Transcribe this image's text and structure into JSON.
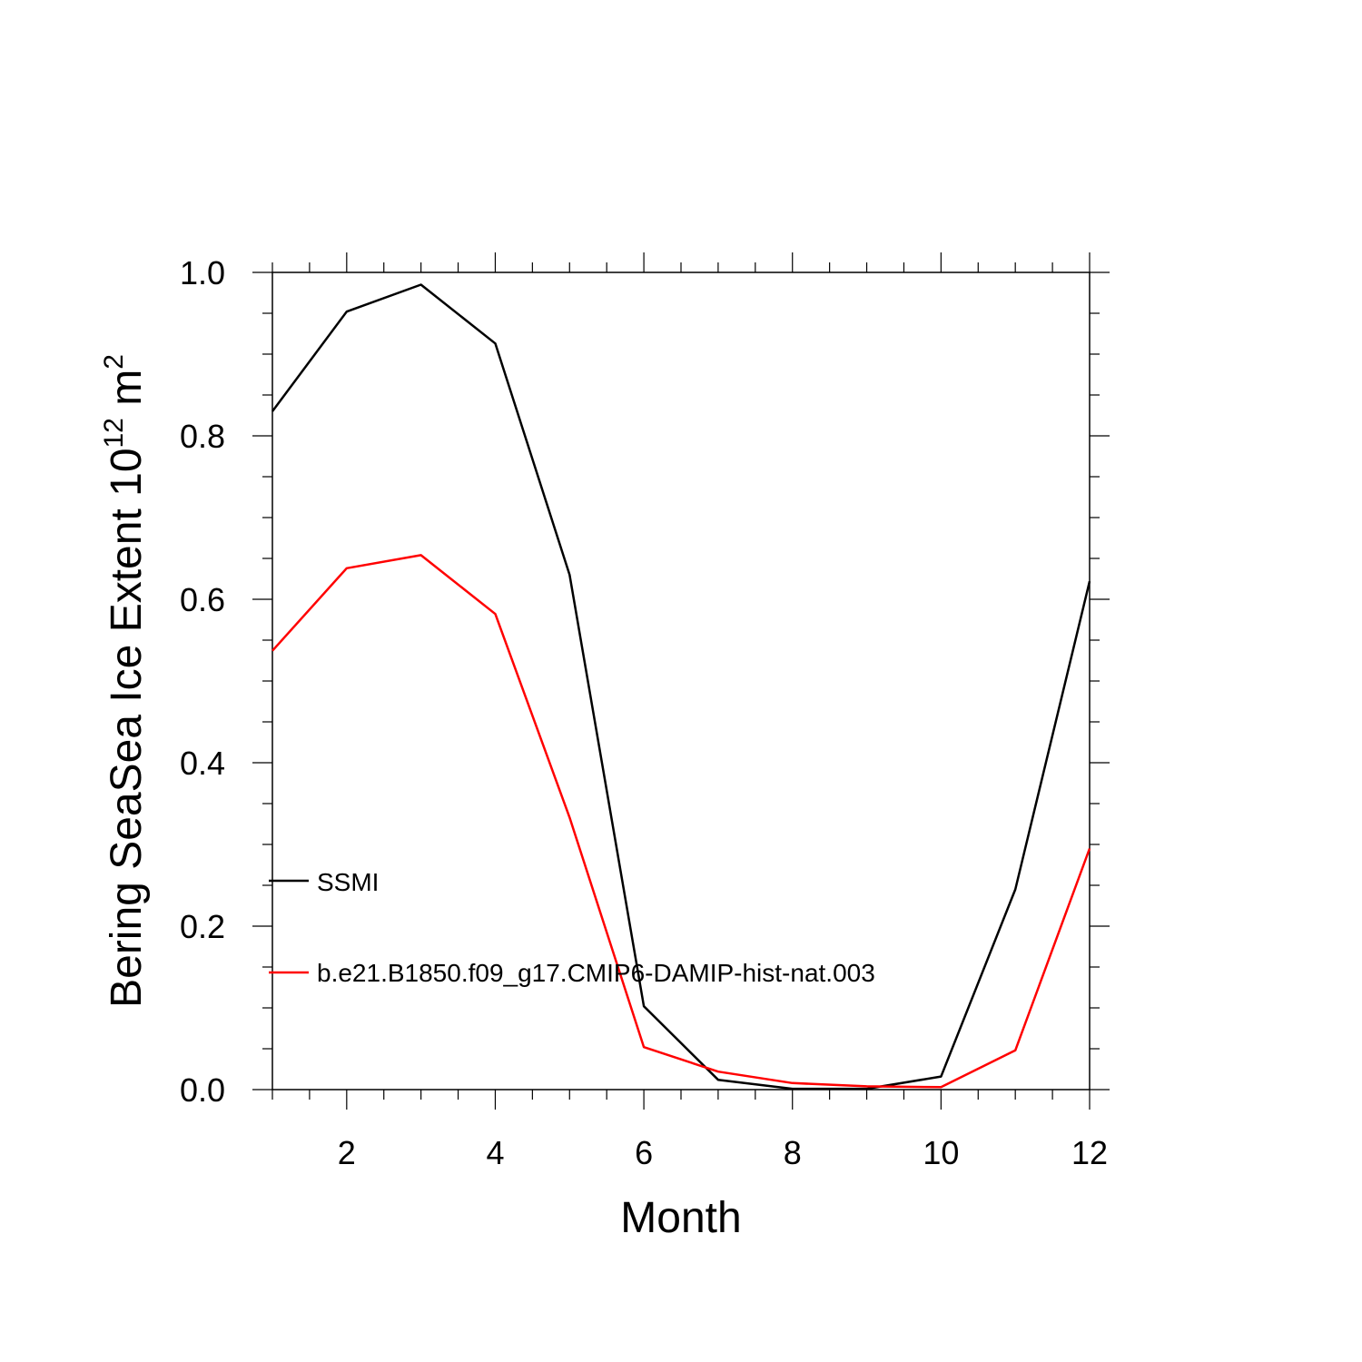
{
  "chart_data": {
    "type": "line",
    "xlabel": "Month",
    "ylabel_main": "Bering SeaSea Ice Extent 10",
    "ylabel_exponent": "12",
    "ylabel_unit": " m",
    "ylabel_unit_exponent": "2",
    "xlim": [
      1,
      12
    ],
    "ylim": [
      0,
      1
    ],
    "x_ticks": [
      2,
      4,
      6,
      8,
      10,
      12
    ],
    "x_tick_labels": [
      "2",
      "4",
      "6",
      "8",
      "10",
      "12"
    ],
    "y_ticks": [
      0,
      0.2,
      0.4,
      0.6,
      0.8,
      1.0
    ],
    "y_tick_labels": [
      "0.0",
      "0.2",
      "0.4",
      "0.6",
      "0.8",
      "1.0"
    ],
    "grid": false,
    "legend_position": "inside-left",
    "x": [
      1,
      2,
      3,
      4,
      5,
      6,
      7,
      8,
      9,
      10,
      11,
      12
    ],
    "series": [
      {
        "name": "SSMI",
        "color": "#000000",
        "values": [
          0.83,
          0.952,
          0.985,
          0.913,
          0.63,
          0.102,
          0.012,
          0.001,
          0.001,
          0.016,
          0.245,
          0.622
        ]
      },
      {
        "name": "b.e21.B1850.f09_g17.CMIP6-DAMIP-hist-nat.003",
        "color": "#ff0000",
        "values": [
          0.537,
          0.638,
          0.654,
          0.582,
          0.333,
          0.052,
          0.022,
          0.008,
          0.004,
          0.003,
          0.048,
          0.295
        ]
      }
    ]
  }
}
